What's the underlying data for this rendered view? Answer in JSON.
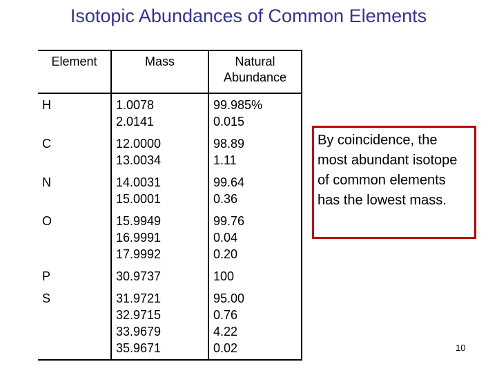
{
  "header": {
    "title": "Isotopic Abundances of Common Elements"
  },
  "table": {
    "columns": [
      "Element",
      "Mass",
      "Natural Abundance"
    ],
    "rows": [
      [
        "H",
        [
          "1.0078",
          "2.0141"
        ],
        [
          "99.985%",
          "0.015"
        ]
      ],
      [
        "C",
        [
          "12.0000",
          "13.0034"
        ],
        [
          "98.89",
          "1.11"
        ]
      ],
      [
        "N",
        [
          "14.0031",
          "15.0001"
        ],
        [
          "99.64",
          "0.36"
        ]
      ],
      [
        "O",
        [
          "15.9949",
          "16.9991",
          "17.9992"
        ],
        [
          "99.76",
          "0.04",
          "0.20"
        ]
      ],
      [
        "P",
        [
          "30.9737"
        ],
        [
          "100"
        ]
      ],
      [
        "S",
        [
          "31.9721",
          "32.9715",
          "33.9679",
          "35.9671"
        ],
        [
          "95.00",
          "0.76",
          "4.22",
          "0.02"
        ]
      ]
    ]
  },
  "note": "By coincidence, the most abundant isotope of common elements has the lowest mass.",
  "page_number": "10"
}
